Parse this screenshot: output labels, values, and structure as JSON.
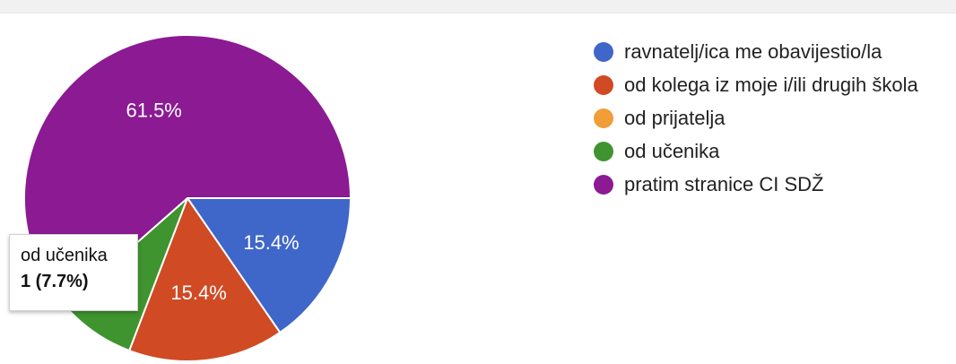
{
  "chart_data": {
    "type": "pie",
    "slices": [
      {
        "label": "ravnatelj/ica me obavijestio/la",
        "value": 15.4,
        "display": "15.4%",
        "color": "#3f66c9"
      },
      {
        "label": "od kolega iz moje i/ili drugih škola",
        "value": 15.4,
        "display": "15.4%",
        "color": "#d04a24"
      },
      {
        "label": "od prijatelja",
        "value": 0,
        "display": "",
        "color": "#f19d38"
      },
      {
        "label": "od učenika",
        "value": 7.7,
        "display": "",
        "color": "#3f942f"
      },
      {
        "label": "pratim stranice CI SDŽ",
        "value": 61.5,
        "display": "61.5%",
        "color": "#8b1a93"
      }
    ],
    "legend_position": "right"
  },
  "tooltip": {
    "label": "od učenika",
    "value_text": "1 (7.7%)"
  }
}
